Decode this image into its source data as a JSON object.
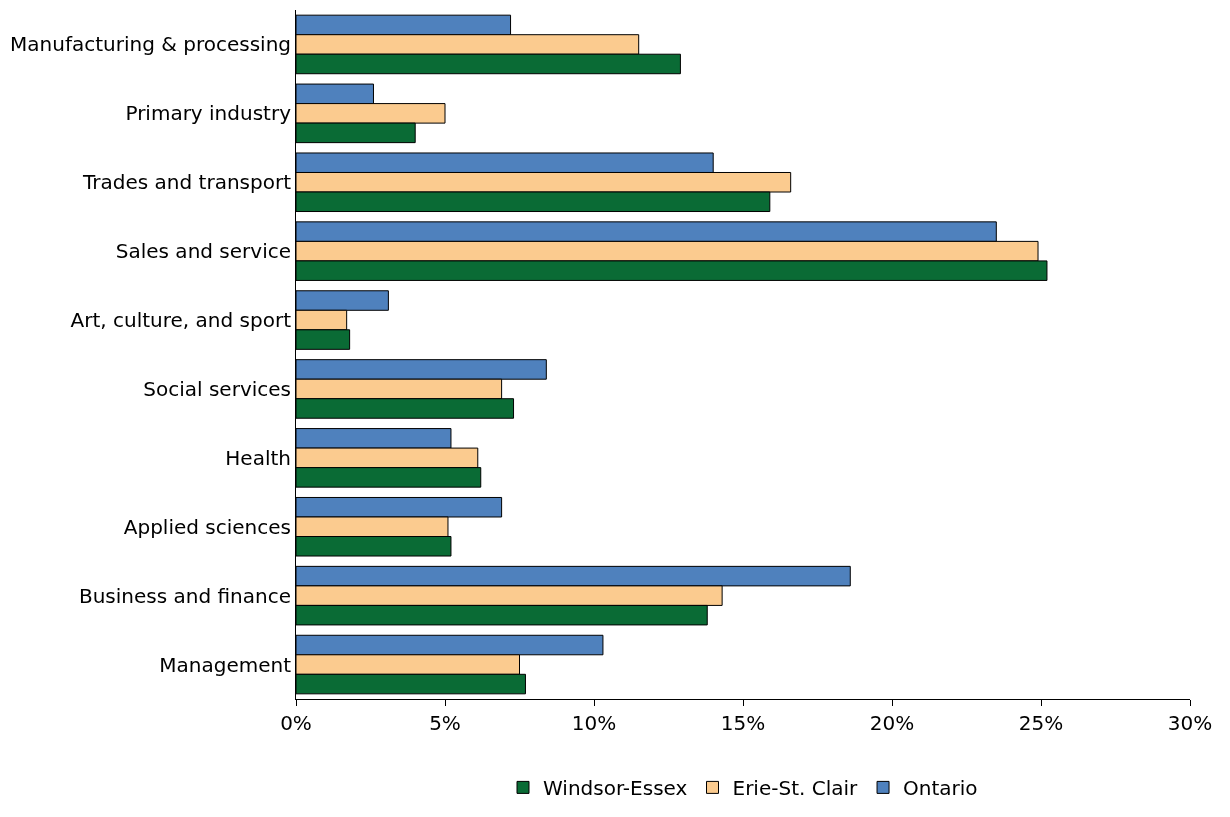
{
  "chart_data": {
    "type": "bar",
    "orientation": "horizontal",
    "categories": [
      "Manufacturing & processing",
      "Primary industry",
      "Trades and transport",
      "Sales and service",
      "Art, culture, and sport",
      "Social services",
      "Health",
      "Applied sciences",
      "Business and finance",
      "Management"
    ],
    "series": [
      {
        "name": "Windsor-Essex",
        "color": "#0a6b35",
        "values": [
          12.9,
          4.0,
          15.9,
          25.2,
          1.8,
          7.3,
          6.2,
          5.2,
          13.8,
          7.7
        ]
      },
      {
        "name": "Erie-St. Clair",
        "color": "#fbcb8f",
        "values": [
          11.5,
          5.0,
          16.6,
          24.9,
          1.7,
          6.9,
          6.1,
          5.1,
          14.3,
          7.5
        ]
      },
      {
        "name": "Ontario",
        "color": "#4f81bd",
        "values": [
          7.2,
          2.6,
          14.0,
          23.5,
          3.1,
          8.4,
          5.2,
          6.9,
          18.6,
          10.3
        ]
      }
    ],
    "xlim": [
      0,
      30
    ],
    "xticks": [
      {
        "value": 0,
        "label": "0%"
      },
      {
        "value": 5,
        "label": "5%"
      },
      {
        "value": 10,
        "label": "10%"
      },
      {
        "value": 15,
        "label": "15%"
      },
      {
        "value": 20,
        "label": "20%"
      },
      {
        "value": 25,
        "label": "25%"
      },
      {
        "value": 30,
        "label": "30%"
      }
    ],
    "grid": false,
    "legend": "bottom"
  }
}
